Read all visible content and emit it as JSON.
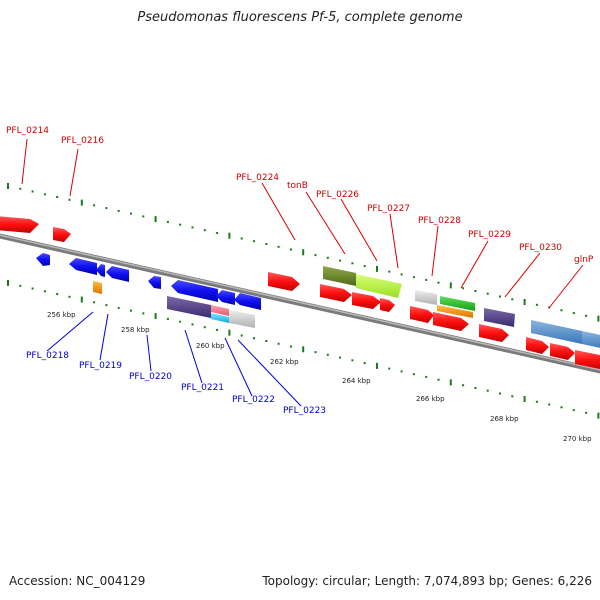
{
  "title": "Pseudomonas fluorescens Pf-5, complete genome",
  "footer": {
    "accession": "Accession: NC_004129",
    "info": "Topology: circular; Length: 7,074,893 bp; Genes: 6,226"
  },
  "colors": {
    "backbone": "#888888",
    "ticks": "#1a7a1a",
    "top_labels": "#cc0000",
    "bottom_labels": "#0000cc"
  },
  "scale_labels": [
    "256 kbp",
    "258 kbp",
    "260 kbp",
    "262 kbp",
    "264 kbp",
    "266 kbp",
    "268 kbp",
    "270 kbp"
  ],
  "top_gene_labels": [
    "PFL_0214",
    "PFL_0216",
    "PFL_0224",
    "tonB",
    "PFL_0226",
    "PFL_0227",
    "PFL_0228",
    "PFL_0229",
    "PFL_0230",
    "glnP"
  ],
  "bottom_gene_labels": [
    "PFL_0218",
    "PFL_0219",
    "PFL_0220",
    "PFL_0221",
    "PFL_0222",
    "PFL_0223"
  ]
}
